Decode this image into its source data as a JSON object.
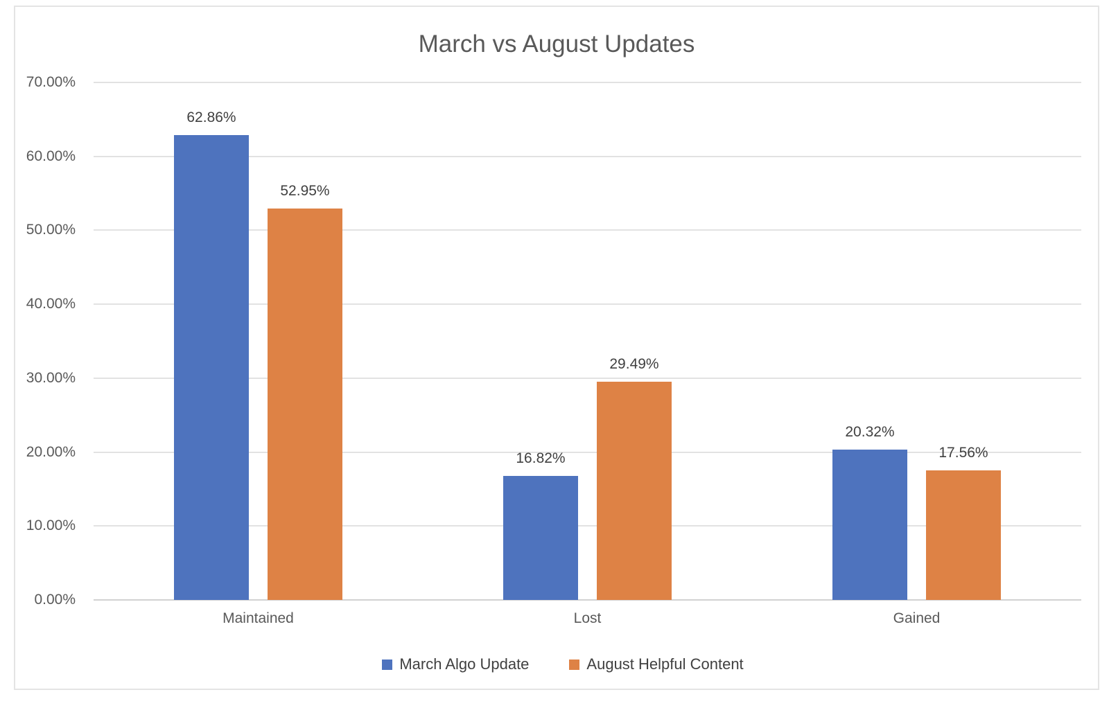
{
  "chart_data": {
    "type": "bar",
    "title": "March vs August Updates",
    "categories": [
      "Maintained",
      "Lost",
      "Gained"
    ],
    "series": [
      {
        "name": "March Algo Update",
        "color": "#4E73BE",
        "values": [
          62.86,
          16.82,
          20.32
        ],
        "data_labels": [
          "62.86%",
          "16.82%",
          "20.32%"
        ]
      },
      {
        "name": "August Helpful Content",
        "color": "#DE8245",
        "values": [
          52.95,
          29.49,
          17.56
        ],
        "data_labels": [
          "52.95%",
          "29.49%",
          "17.56%"
        ]
      }
    ],
    "y_axis": {
      "min": 0,
      "max": 70,
      "step": 10,
      "tick_labels": [
        "0.00%",
        "10.00%",
        "20.00%",
        "30.00%",
        "40.00%",
        "50.00%",
        "60.00%",
        "70.00%"
      ]
    },
    "xlabel": "",
    "ylabel": "",
    "grid": true,
    "legend_position": "bottom",
    "colors": {
      "title_text": "#595959",
      "axis_text": "#595959",
      "data_label_text": "#404040",
      "gridline": "#e2e2e2",
      "frame_border": "#e4e4e4"
    }
  }
}
